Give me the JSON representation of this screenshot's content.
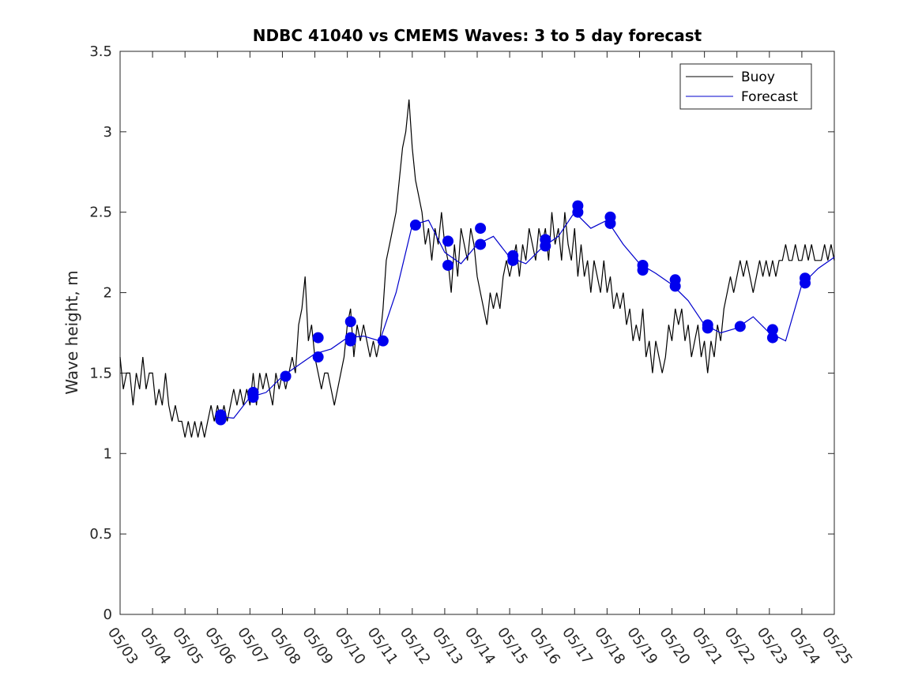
{
  "chart_data": {
    "type": "line",
    "title": "NDBC 41040 vs CMEMS Waves: 3 to 5 day forecast",
    "xlabel": "",
    "ylabel": "Wave height, m",
    "ylim": [
      0,
      3.5
    ],
    "xlim": [
      "05/03",
      "05/25"
    ],
    "x_tick_labels": [
      "05/03",
      "05/04",
      "05/05",
      "05/06",
      "05/07",
      "05/08",
      "05/09",
      "05/10",
      "05/11",
      "05/12",
      "05/13",
      "05/14",
      "05/15",
      "05/16",
      "05/17",
      "05/18",
      "05/19",
      "05/20",
      "05/21",
      "05/22",
      "05/23",
      "05/24",
      "05/25"
    ],
    "y_tick_labels": [
      "0",
      "0.5",
      "1",
      "1.5",
      "2",
      "2.5",
      "3",
      "3.5"
    ],
    "y_ticks": [
      0,
      0.5,
      1,
      1.5,
      2,
      2.5,
      3,
      3.5
    ],
    "legend": {
      "position": "top-right",
      "entries": [
        {
          "label": "Buoy",
          "color": "#000000"
        },
        {
          "label": "Forecast",
          "color": "#0000cc"
        }
      ]
    },
    "grid": false,
    "series": [
      {
        "name": "Buoy",
        "color": "#000000",
        "x_days": [
          0,
          0.1,
          0.2,
          0.3,
          0.4,
          0.5,
          0.6,
          0.7,
          0.8,
          0.9,
          1.0,
          1.1,
          1.2,
          1.3,
          1.4,
          1.5,
          1.6,
          1.7,
          1.8,
          1.9,
          2.0,
          2.1,
          2.2,
          2.3,
          2.4,
          2.5,
          2.6,
          2.7,
          2.8,
          2.9,
          3.0,
          3.1,
          3.2,
          3.3,
          3.4,
          3.5,
          3.6,
          3.7,
          3.8,
          3.9,
          4.0,
          4.1,
          4.2,
          4.3,
          4.4,
          4.5,
          4.6,
          4.7,
          4.8,
          4.9,
          5.0,
          5.1,
          5.2,
          5.3,
          5.4,
          5.5,
          5.6,
          5.7,
          5.8,
          5.9,
          6.0,
          6.1,
          6.2,
          6.3,
          6.4,
          6.5,
          6.6,
          6.7,
          6.8,
          6.9,
          7.0,
          7.1,
          7.2,
          7.3,
          7.4,
          7.5,
          7.6,
          7.7,
          7.8,
          7.9,
          8.0,
          8.1,
          8.2,
          8.3,
          8.4,
          8.5,
          8.6,
          8.7,
          8.8,
          8.9,
          9.0,
          9.1,
          9.2,
          9.3,
          9.4,
          9.5,
          9.6,
          9.7,
          9.8,
          9.9,
          10.0,
          10.1,
          10.2,
          10.3,
          10.4,
          10.5,
          10.6,
          10.7,
          10.8,
          10.9,
          11.0,
          11.1,
          11.2,
          11.3,
          11.4,
          11.5,
          11.6,
          11.7,
          11.8,
          11.9,
          12.0,
          12.1,
          12.2,
          12.3,
          12.4,
          12.5,
          12.6,
          12.7,
          12.8,
          12.9,
          13.0,
          13.1,
          13.2,
          13.3,
          13.4,
          13.5,
          13.6,
          13.7,
          13.8,
          13.9,
          14.0,
          14.1,
          14.2,
          14.3,
          14.4,
          14.5,
          14.6,
          14.7,
          14.8,
          14.9,
          15.0,
          15.1,
          15.2,
          15.3,
          15.4,
          15.5,
          15.6,
          15.7,
          15.8,
          15.9,
          16.0,
          16.1,
          16.2,
          16.3,
          16.4,
          16.5,
          16.6,
          16.7,
          16.8,
          16.9,
          17.0,
          17.1,
          17.2,
          17.3,
          17.4,
          17.5,
          17.6,
          17.7,
          17.8,
          17.9,
          18.0,
          18.1,
          18.2,
          18.3,
          18.4,
          18.5,
          18.6,
          18.7,
          18.8,
          18.9,
          19.0,
          19.1,
          19.2,
          19.3,
          19.4,
          19.5,
          19.6,
          19.7,
          19.8,
          19.9,
          20.0,
          20.1,
          20.2,
          20.3,
          20.4,
          20.5,
          20.6,
          20.7,
          20.8,
          20.9,
          21.0,
          21.1,
          21.2,
          21.3,
          21.4,
          21.5,
          21.6,
          21.7,
          21.8,
          21.9,
          22.0
        ],
        "values": [
          1.6,
          1.4,
          1.5,
          1.5,
          1.3,
          1.5,
          1.4,
          1.6,
          1.4,
          1.5,
          1.5,
          1.3,
          1.4,
          1.3,
          1.5,
          1.3,
          1.2,
          1.3,
          1.2,
          1.2,
          1.1,
          1.2,
          1.1,
          1.2,
          1.1,
          1.2,
          1.1,
          1.2,
          1.3,
          1.2,
          1.3,
          1.2,
          1.3,
          1.2,
          1.3,
          1.4,
          1.3,
          1.4,
          1.3,
          1.4,
          1.3,
          1.5,
          1.3,
          1.5,
          1.4,
          1.5,
          1.4,
          1.3,
          1.5,
          1.4,
          1.5,
          1.4,
          1.5,
          1.6,
          1.5,
          1.8,
          1.9,
          2.1,
          1.7,
          1.8,
          1.6,
          1.5,
          1.4,
          1.5,
          1.5,
          1.4,
          1.3,
          1.4,
          1.5,
          1.6,
          1.8,
          1.9,
          1.6,
          1.8,
          1.7,
          1.8,
          1.7,
          1.6,
          1.7,
          1.6,
          1.7,
          1.9,
          2.2,
          2.3,
          2.4,
          2.5,
          2.7,
          2.9,
          3.0,
          3.2,
          2.9,
          2.7,
          2.6,
          2.5,
          2.3,
          2.4,
          2.2,
          2.4,
          2.3,
          2.5,
          2.3,
          2.2,
          2.0,
          2.3,
          2.1,
          2.4,
          2.3,
          2.2,
          2.4,
          2.3,
          2.1,
          2.0,
          1.9,
          1.8,
          2.0,
          1.9,
          2.0,
          1.9,
          2.1,
          2.2,
          2.1,
          2.2,
          2.3,
          2.1,
          2.3,
          2.2,
          2.4,
          2.3,
          2.2,
          2.4,
          2.3,
          2.4,
          2.2,
          2.5,
          2.3,
          2.4,
          2.2,
          2.5,
          2.3,
          2.2,
          2.4,
          2.1,
          2.3,
          2.1,
          2.2,
          2.0,
          2.2,
          2.1,
          2.0,
          2.2,
          2.0,
          2.1,
          1.9,
          2.0,
          1.9,
          2.0,
          1.8,
          1.9,
          1.7,
          1.8,
          1.7,
          1.9,
          1.6,
          1.7,
          1.5,
          1.7,
          1.6,
          1.5,
          1.6,
          1.8,
          1.7,
          1.9,
          1.8,
          1.9,
          1.7,
          1.8,
          1.6,
          1.7,
          1.8,
          1.6,
          1.7,
          1.5,
          1.7,
          1.6,
          1.8,
          1.7,
          1.9,
          2.0,
          2.1,
          2.0,
          2.1,
          2.2,
          2.1,
          2.2,
          2.1,
          2.0,
          2.1,
          2.2,
          2.1,
          2.2,
          2.1,
          2.2,
          2.1,
          2.2,
          2.2,
          2.3,
          2.2,
          2.2,
          2.3,
          2.2,
          2.2,
          2.3,
          2.2,
          2.3,
          2.2,
          2.2,
          2.2,
          2.3,
          2.2,
          2.3,
          2.2
        ]
      },
      {
        "name": "Forecast",
        "color": "#0000cc",
        "x_days": [
          3.0,
          3.5,
          4.0,
          4.5,
          5.0,
          5.5,
          6.0,
          6.5,
          7.0,
          7.5,
          8.0,
          8.5,
          9.0,
          9.5,
          10.0,
          10.5,
          11.0,
          11.5,
          12.0,
          12.5,
          13.0,
          13.5,
          14.0,
          14.5,
          15.0,
          15.5,
          16.0,
          16.5,
          17.0,
          17.5,
          18.0,
          18.5,
          19.0,
          19.5,
          20.0,
          20.5,
          21.0,
          21.5,
          22.0
        ],
        "values": [
          1.23,
          1.22,
          1.35,
          1.38,
          1.48,
          1.55,
          1.62,
          1.65,
          1.72,
          1.73,
          1.7,
          2.0,
          2.42,
          2.45,
          2.25,
          2.18,
          2.3,
          2.35,
          2.22,
          2.18,
          2.28,
          2.35,
          2.5,
          2.4,
          2.45,
          2.3,
          2.18,
          2.12,
          2.05,
          1.95,
          1.8,
          1.75,
          1.78,
          1.85,
          1.75,
          1.7,
          2.05,
          2.15,
          2.22
        ]
      }
    ],
    "forecast_markers": [
      {
        "x_days": 3.1,
        "value": 1.24
      },
      {
        "x_days": 3.1,
        "value": 1.21
      },
      {
        "x_days": 4.1,
        "value": 1.38
      },
      {
        "x_days": 4.1,
        "value": 1.35
      },
      {
        "x_days": 5.1,
        "value": 1.48
      },
      {
        "x_days": 6.1,
        "value": 1.72
      },
      {
        "x_days": 6.1,
        "value": 1.6
      },
      {
        "x_days": 7.1,
        "value": 1.82
      },
      {
        "x_days": 7.1,
        "value": 1.72
      },
      {
        "x_days": 7.1,
        "value": 1.7
      },
      {
        "x_days": 8.1,
        "value": 1.7
      },
      {
        "x_days": 9.1,
        "value": 2.42
      },
      {
        "x_days": 10.1,
        "value": 2.32
      },
      {
        "x_days": 10.1,
        "value": 2.17
      },
      {
        "x_days": 11.1,
        "value": 2.4
      },
      {
        "x_days": 11.1,
        "value": 2.3
      },
      {
        "x_days": 12.1,
        "value": 2.23
      },
      {
        "x_days": 12.1,
        "value": 2.2
      },
      {
        "x_days": 13.1,
        "value": 2.33
      },
      {
        "x_days": 13.1,
        "value": 2.29
      },
      {
        "x_days": 14.1,
        "value": 2.54
      },
      {
        "x_days": 14.1,
        "value": 2.5
      },
      {
        "x_days": 15.1,
        "value": 2.47
      },
      {
        "x_days": 15.1,
        "value": 2.43
      },
      {
        "x_days": 16.1,
        "value": 2.17
      },
      {
        "x_days": 16.1,
        "value": 2.14
      },
      {
        "x_days": 17.1,
        "value": 2.08
      },
      {
        "x_days": 17.1,
        "value": 2.04
      },
      {
        "x_days": 18.1,
        "value": 1.8
      },
      {
        "x_days": 18.1,
        "value": 1.78
      },
      {
        "x_days": 19.1,
        "value": 1.79
      },
      {
        "x_days": 20.1,
        "value": 1.77
      },
      {
        "x_days": 20.1,
        "value": 1.72
      },
      {
        "x_days": 21.1,
        "value": 2.09
      },
      {
        "x_days": 21.1,
        "value": 2.06
      }
    ]
  }
}
